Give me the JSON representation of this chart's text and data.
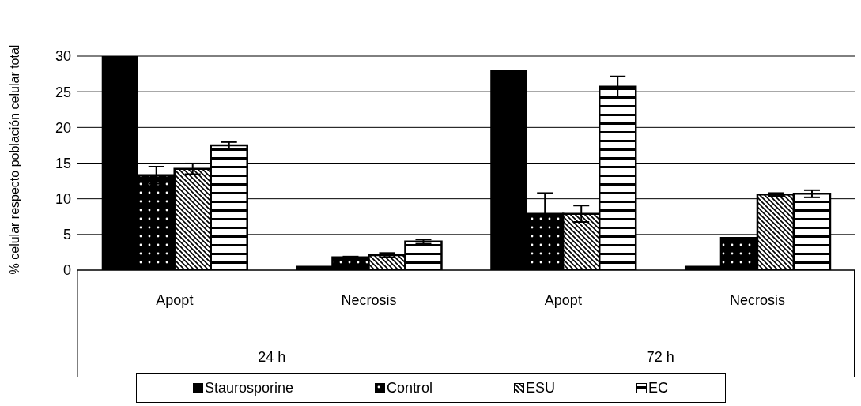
{
  "chart_data": {
    "type": "bar",
    "ylabel": "% celular respecto población celular total",
    "categories": [
      "Apopt",
      "Necrosis",
      "Apopt",
      "Necrosis"
    ],
    "series": [
      {
        "name": "Staurosporine",
        "color": "#000000",
        "values": [
          30,
          0.6,
          28,
          0.6
        ],
        "errors": [
          null,
          null,
          null,
          null
        ]
      },
      {
        "name": "Control",
        "color": "#000000",
        "values": [
          13.3,
          1.8,
          7.9,
          4.5
        ],
        "errors": [
          1.2,
          0.1,
          2.9,
          null
        ]
      },
      {
        "name": "ESU",
        "color": "#000000",
        "values": [
          14.2,
          2.1,
          7.9,
          10.6
        ],
        "errors": [
          0.75,
          0.3,
          1.15,
          0.2
        ]
      },
      {
        "name": "EC",
        "color": "#000000",
        "values": [
          17.5,
          4.0,
          25.7,
          10.7
        ],
        "errors": [
          0.45,
          0.3,
          1.45,
          0.5
        ]
      }
    ],
    "annotations": [
      "24 h",
      "72 h"
    ],
    "ylim": [
      0,
      30
    ],
    "yticks": [
      0,
      5,
      10,
      15,
      20,
      25,
      30
    ],
    "grid": "y",
    "legend": "bottom"
  }
}
